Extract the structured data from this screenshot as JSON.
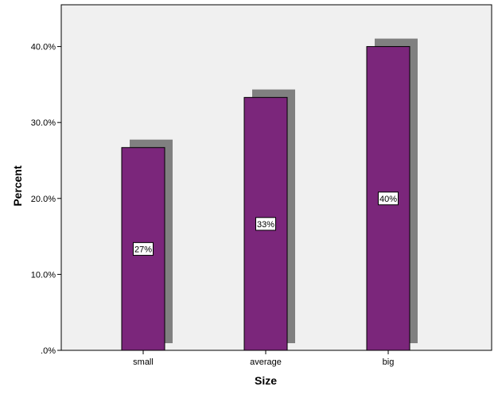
{
  "chart_data": {
    "type": "bar",
    "categories": [
      "small",
      "average",
      "big"
    ],
    "values": [
      26.7,
      33.3,
      40.0
    ],
    "data_labels": [
      "27%",
      "33%",
      "40%"
    ],
    "xlabel": "Size",
    "ylabel": "Percent",
    "ylim": [
      0,
      45.5
    ],
    "yticks": [
      0,
      10,
      20,
      30,
      40
    ],
    "ytick_labels": [
      ".0%",
      "10.0%",
      "20.0%",
      "30.0%",
      "40.0%"
    ],
    "grid": false,
    "shadow": true,
    "colors": {
      "bar": "#7b267b",
      "shadow": "#808080",
      "plot_background": "#f0f0f0"
    }
  }
}
